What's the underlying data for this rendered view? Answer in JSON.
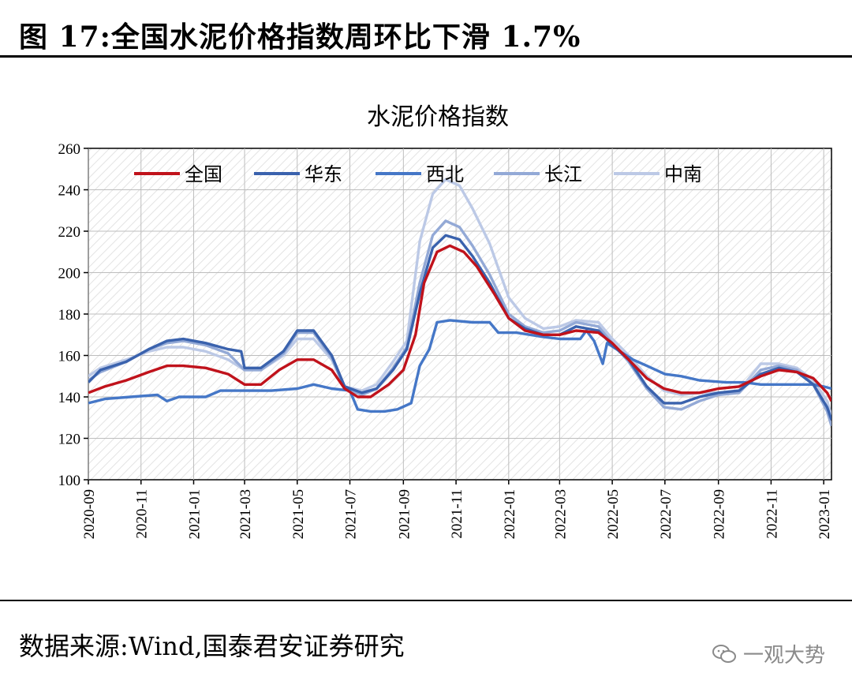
{
  "header": {
    "title": "图 17:全国水泥价格指数周环比下滑 1.7%"
  },
  "footer": {
    "source": "数据来源:Wind,国泰君安证券研究",
    "watermark": "一观大势"
  },
  "colors": {
    "全国": "#c0121b",
    "华东": "#3a62ad",
    "西北": "#4577c7",
    "长江": "#93a9d6",
    "中南": "#bcc9e6"
  },
  "chart_data": {
    "type": "line",
    "title": "水泥价格指数",
    "xlabel": "",
    "ylabel": "",
    "ylim": [
      100,
      260
    ],
    "yticks": [
      100,
      120,
      140,
      160,
      180,
      200,
      220,
      240,
      260
    ],
    "xticks": [
      "2020-09",
      "2020-11",
      "2021-01",
      "2021-03",
      "2021-05",
      "2021-07",
      "2021-09",
      "2021-11",
      "2022-01",
      "2022-03",
      "2022-05",
      "2022-07",
      "2022-09",
      "2022-11",
      "2023-01"
    ],
    "x_range": [
      "2020-09-01",
      "2023-01-10"
    ],
    "legend_position": "top",
    "grid": true,
    "series": [
      {
        "name": "全国",
        "points": [
          [
            "2020-09-01",
            142
          ],
          [
            "2020-09-20",
            145
          ],
          [
            "2020-10-15",
            148
          ],
          [
            "2020-11-10",
            152
          ],
          [
            "2020-12-01",
            155
          ],
          [
            "2020-12-20",
            155
          ],
          [
            "2021-01-15",
            154
          ],
          [
            "2021-02-10",
            151
          ],
          [
            "2021-03-01",
            146
          ],
          [
            "2021-03-20",
            146
          ],
          [
            "2021-04-10",
            153
          ],
          [
            "2021-05-01",
            158
          ],
          [
            "2021-05-20",
            158
          ],
          [
            "2021-06-10",
            153
          ],
          [
            "2021-06-25",
            144
          ],
          [
            "2021-07-10",
            140
          ],
          [
            "2021-07-25",
            140
          ],
          [
            "2021-08-15",
            146
          ],
          [
            "2021-09-01",
            153
          ],
          [
            "2021-09-15",
            170
          ],
          [
            "2021-09-25",
            195
          ],
          [
            "2021-10-10",
            210
          ],
          [
            "2021-10-25",
            213
          ],
          [
            "2021-11-10",
            210
          ],
          [
            "2021-11-25",
            203
          ],
          [
            "2021-12-15",
            190
          ],
          [
            "2022-01-01",
            178
          ],
          [
            "2022-01-20",
            172
          ],
          [
            "2022-02-10",
            170
          ],
          [
            "2022-03-01",
            170
          ],
          [
            "2022-03-20",
            172
          ],
          [
            "2022-04-15",
            171
          ],
          [
            "2022-05-01",
            166
          ],
          [
            "2022-05-20",
            158
          ],
          [
            "2022-06-10",
            149
          ],
          [
            "2022-06-30",
            144
          ],
          [
            "2022-07-20",
            142
          ],
          [
            "2022-08-10",
            142
          ],
          [
            "2022-09-01",
            144
          ],
          [
            "2022-09-25",
            145
          ],
          [
            "2022-10-20",
            150
          ],
          [
            "2022-11-10",
            153
          ],
          [
            "2022-12-01",
            152
          ],
          [
            "2022-12-20",
            149
          ],
          [
            "2023-01-05",
            142
          ],
          [
            "2023-01-10",
            138
          ]
        ]
      },
      {
        "name": "华东",
        "points": [
          [
            "2020-09-01",
            147
          ],
          [
            "2020-09-15",
            153
          ],
          [
            "2020-10-15",
            157
          ],
          [
            "2020-11-10",
            163
          ],
          [
            "2020-12-01",
            167
          ],
          [
            "2020-12-20",
            168
          ],
          [
            "2021-01-15",
            166
          ],
          [
            "2021-02-10",
            163
          ],
          [
            "2021-02-25",
            162
          ],
          [
            "2021-03-01",
            154
          ],
          [
            "2021-03-20",
            154
          ],
          [
            "2021-04-15",
            162
          ],
          [
            "2021-05-01",
            172
          ],
          [
            "2021-05-20",
            172
          ],
          [
            "2021-06-10",
            160
          ],
          [
            "2021-06-25",
            145
          ],
          [
            "2021-07-15",
            142
          ],
          [
            "2021-08-01",
            144
          ],
          [
            "2021-08-20",
            153
          ],
          [
            "2021-09-05",
            163
          ],
          [
            "2021-09-20",
            190
          ],
          [
            "2021-10-05",
            212
          ],
          [
            "2021-10-20",
            218
          ],
          [
            "2021-11-05",
            216
          ],
          [
            "2021-11-20",
            208
          ],
          [
            "2021-12-10",
            195
          ],
          [
            "2022-01-01",
            178
          ],
          [
            "2022-01-20",
            173
          ],
          [
            "2022-02-10",
            170
          ],
          [
            "2022-03-01",
            170
          ],
          [
            "2022-03-20",
            174
          ],
          [
            "2022-04-15",
            172
          ],
          [
            "2022-05-01",
            165
          ],
          [
            "2022-05-20",
            158
          ],
          [
            "2022-06-10",
            145
          ],
          [
            "2022-06-30",
            137
          ],
          [
            "2022-07-20",
            137
          ],
          [
            "2022-08-10",
            140
          ],
          [
            "2022-09-01",
            142
          ],
          [
            "2022-09-25",
            143
          ],
          [
            "2022-10-20",
            151
          ],
          [
            "2022-11-10",
            154
          ],
          [
            "2022-12-01",
            152
          ],
          [
            "2022-12-20",
            146
          ],
          [
            "2023-01-05",
            135
          ],
          [
            "2023-01-10",
            129
          ]
        ]
      },
      {
        "name": "西北",
        "points": [
          [
            "2020-09-01",
            137
          ],
          [
            "2020-09-20",
            139
          ],
          [
            "2020-10-20",
            140
          ],
          [
            "2020-11-20",
            141
          ],
          [
            "2020-12-01",
            138
          ],
          [
            "2020-12-15",
            140
          ],
          [
            "2021-01-15",
            140
          ],
          [
            "2021-02-01",
            143
          ],
          [
            "2021-03-01",
            143
          ],
          [
            "2021-04-01",
            143
          ],
          [
            "2021-05-01",
            144
          ],
          [
            "2021-05-20",
            146
          ],
          [
            "2021-06-10",
            144
          ],
          [
            "2021-07-01",
            143
          ],
          [
            "2021-07-10",
            134
          ],
          [
            "2021-07-25",
            133
          ],
          [
            "2021-08-10",
            133
          ],
          [
            "2021-08-25",
            134
          ],
          [
            "2021-09-10",
            137
          ],
          [
            "2021-09-20",
            155
          ],
          [
            "2021-10-01",
            163
          ],
          [
            "2021-10-10",
            176
          ],
          [
            "2021-10-25",
            177
          ],
          [
            "2021-11-20",
            176
          ],
          [
            "2021-12-10",
            176
          ],
          [
            "2021-12-20",
            171
          ],
          [
            "2022-01-10",
            171
          ],
          [
            "2022-02-10",
            169
          ],
          [
            "2022-03-01",
            168
          ],
          [
            "2022-03-25",
            168
          ],
          [
            "2022-04-01",
            172
          ],
          [
            "2022-04-10",
            167
          ],
          [
            "2022-04-20",
            156
          ],
          [
            "2022-04-25",
            166
          ],
          [
            "2022-05-10",
            162
          ],
          [
            "2022-05-25",
            158
          ],
          [
            "2022-06-10",
            155
          ],
          [
            "2022-07-01",
            151
          ],
          [
            "2022-07-20",
            150
          ],
          [
            "2022-08-10",
            148
          ],
          [
            "2022-09-10",
            147
          ],
          [
            "2022-10-01",
            147
          ],
          [
            "2022-10-20",
            146
          ],
          [
            "2022-11-20",
            146
          ],
          [
            "2022-12-20",
            146
          ],
          [
            "2023-01-01",
            145
          ],
          [
            "2023-01-10",
            144
          ]
        ]
      },
      {
        "name": "长江",
        "points": [
          [
            "2020-09-01",
            148
          ],
          [
            "2020-09-15",
            152
          ],
          [
            "2020-10-15",
            157
          ],
          [
            "2020-11-10",
            163
          ],
          [
            "2020-12-01",
            166
          ],
          [
            "2020-12-20",
            167
          ],
          [
            "2021-01-15",
            165
          ],
          [
            "2021-02-10",
            161
          ],
          [
            "2021-03-01",
            153
          ],
          [
            "2021-03-20",
            153
          ],
          [
            "2021-04-15",
            161
          ],
          [
            "2021-05-01",
            171
          ],
          [
            "2021-05-20",
            171
          ],
          [
            "2021-06-10",
            159
          ],
          [
            "2021-06-25",
            144
          ],
          [
            "2021-07-15",
            141
          ],
          [
            "2021-08-01",
            144
          ],
          [
            "2021-08-20",
            154
          ],
          [
            "2021-09-05",
            164
          ],
          [
            "2021-09-20",
            195
          ],
          [
            "2021-10-05",
            218
          ],
          [
            "2021-10-20",
            225
          ],
          [
            "2021-11-05",
            222
          ],
          [
            "2021-11-20",
            213
          ],
          [
            "2021-12-10",
            199
          ],
          [
            "2022-01-01",
            180
          ],
          [
            "2022-01-20",
            174
          ],
          [
            "2022-02-10",
            171
          ],
          [
            "2022-03-01",
            172
          ],
          [
            "2022-03-20",
            176
          ],
          [
            "2022-04-15",
            174
          ],
          [
            "2022-05-01",
            166
          ],
          [
            "2022-05-20",
            157
          ],
          [
            "2022-06-10",
            144
          ],
          [
            "2022-06-30",
            135
          ],
          [
            "2022-07-20",
            134
          ],
          [
            "2022-08-10",
            138
          ],
          [
            "2022-09-01",
            141
          ],
          [
            "2022-09-25",
            142
          ],
          [
            "2022-10-20",
            153
          ],
          [
            "2022-11-10",
            155
          ],
          [
            "2022-12-01",
            153
          ],
          [
            "2022-12-20",
            146
          ],
          [
            "2023-01-05",
            133
          ],
          [
            "2023-01-10",
            126
          ]
        ]
      },
      {
        "name": "中南",
        "points": [
          [
            "2020-09-01",
            150
          ],
          [
            "2020-09-15",
            154
          ],
          [
            "2020-10-15",
            158
          ],
          [
            "2020-11-10",
            162
          ],
          [
            "2020-12-01",
            164
          ],
          [
            "2020-12-20",
            164
          ],
          [
            "2021-01-15",
            162
          ],
          [
            "2021-02-10",
            158
          ],
          [
            "2021-03-01",
            153
          ],
          [
            "2021-03-20",
            153
          ],
          [
            "2021-04-15",
            160
          ],
          [
            "2021-05-01",
            168
          ],
          [
            "2021-05-20",
            168
          ],
          [
            "2021-06-10",
            158
          ],
          [
            "2021-06-25",
            145
          ],
          [
            "2021-07-15",
            143
          ],
          [
            "2021-08-01",
            146
          ],
          [
            "2021-08-20",
            157
          ],
          [
            "2021-09-05",
            167
          ],
          [
            "2021-09-20",
            215
          ],
          [
            "2021-10-05",
            238
          ],
          [
            "2021-10-20",
            245
          ],
          [
            "2021-11-05",
            242
          ],
          [
            "2021-11-20",
            231
          ],
          [
            "2021-12-10",
            214
          ],
          [
            "2022-01-01",
            188
          ],
          [
            "2022-01-20",
            178
          ],
          [
            "2022-02-10",
            173
          ],
          [
            "2022-03-01",
            174
          ],
          [
            "2022-03-20",
            177
          ],
          [
            "2022-04-15",
            176
          ],
          [
            "2022-05-01",
            168
          ],
          [
            "2022-05-20",
            160
          ],
          [
            "2022-06-10",
            150
          ],
          [
            "2022-06-30",
            143
          ],
          [
            "2022-07-20",
            141
          ],
          [
            "2022-08-10",
            142
          ],
          [
            "2022-09-01",
            142
          ],
          [
            "2022-09-25",
            143
          ],
          [
            "2022-10-20",
            156
          ],
          [
            "2022-11-10",
            156
          ],
          [
            "2022-12-01",
            154
          ],
          [
            "2022-12-20",
            148
          ],
          [
            "2023-01-05",
            138
          ],
          [
            "2023-01-10",
            131
          ]
        ]
      }
    ]
  }
}
